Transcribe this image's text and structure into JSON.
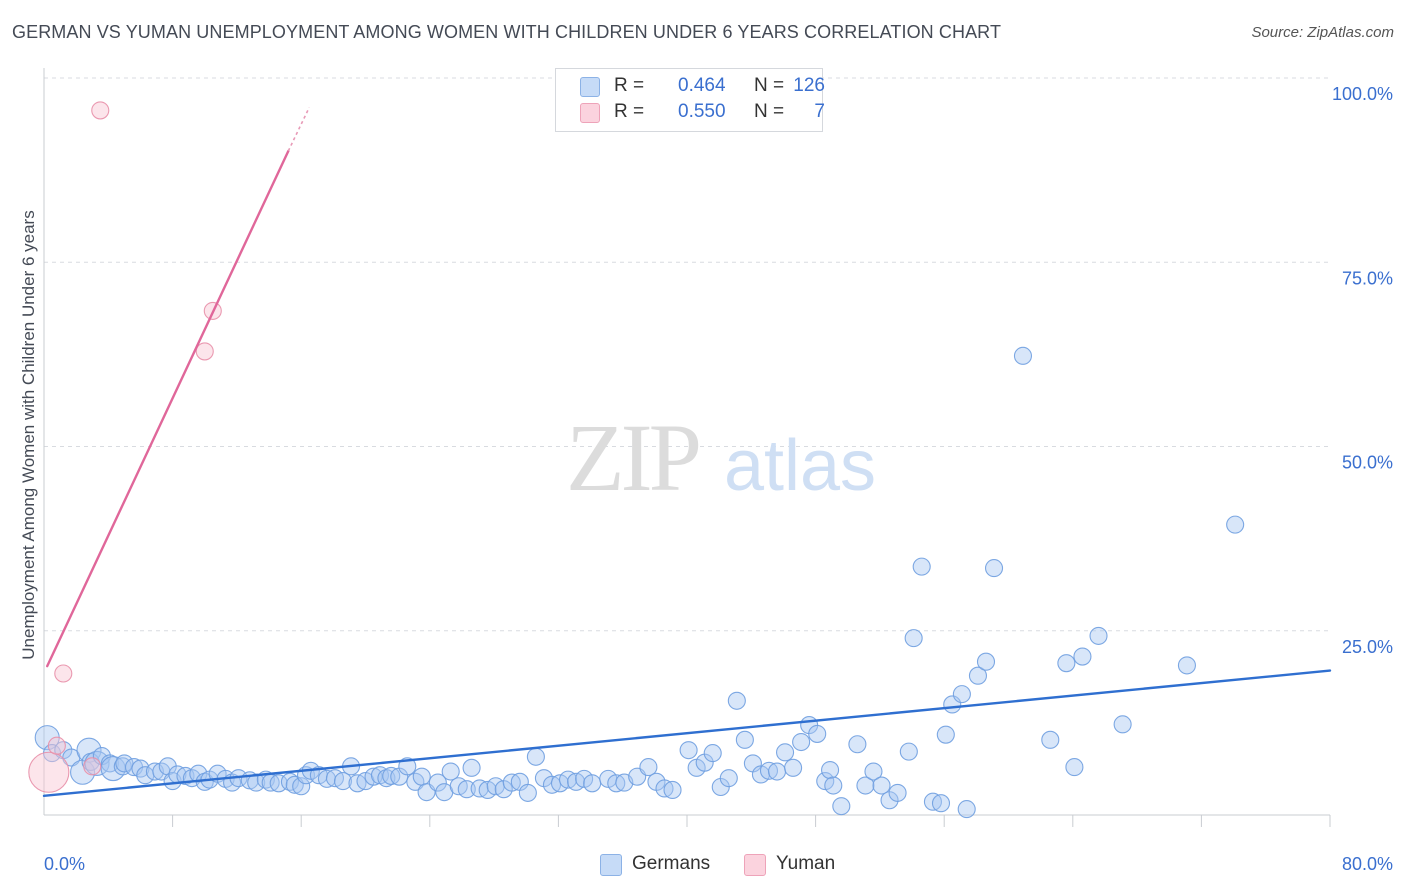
{
  "title": "GERMAN VS YUMAN UNEMPLOYMENT AMONG WOMEN WITH CHILDREN UNDER 6 YEARS CORRELATION CHART",
  "source": "Source: ZipAtlas.com",
  "watermark": {
    "zip": "ZIP",
    "atlas": "atlas"
  },
  "legend": {
    "r_label": "R =",
    "n_label": "N =",
    "entries": [
      {
        "name": "Germans",
        "r": "0.464",
        "n": "126",
        "color": "#a9c8f2",
        "stroke": "#6f9fe0"
      },
      {
        "name": "Yuman",
        "r": "0.550",
        "n": "7",
        "color": "#f8c6d3",
        "stroke": "#e88fa9"
      }
    ]
  },
  "chart_data": {
    "type": "scatter",
    "title": "GERMAN VS YUMAN UNEMPLOYMENT AMONG WOMEN WITH CHILDREN UNDER 6 YEARS CORRELATION CHART",
    "xlabel": "",
    "ylabel": "Unemployment Among Women with Children Under 6 years",
    "xlim": [
      0,
      80
    ],
    "ylim": [
      0,
      100
    ],
    "x_tick_labels": [
      "0.0%",
      "80.0%"
    ],
    "y_tick_labels": [
      {
        "value": 100,
        "label": "100.0%"
      },
      {
        "value": 75,
        "label": "75.0%"
      },
      {
        "value": 50,
        "label": "50.0%"
      },
      {
        "value": 25,
        "label": "25.0%"
      }
    ],
    "grid": true,
    "series": [
      {
        "name": "Germans",
        "color": "#6f9fe0",
        "fill": "#a9c8f2",
        "trendline": {
          "x": [
            0,
            80
          ],
          "y": [
            2.6,
            19.6
          ]
        },
        "points": [
          [
            0.2,
            10.5,
            2
          ],
          [
            0.5,
            8.4,
            1
          ],
          [
            1.2,
            8.8,
            1
          ],
          [
            1.7,
            7.8,
            1
          ],
          [
            2.4,
            5.8,
            2
          ],
          [
            2.8,
            8.8,
            2
          ],
          [
            2.9,
            7.2,
            1
          ],
          [
            3.3,
            7.0,
            2
          ],
          [
            3.6,
            8.0,
            1
          ],
          [
            4.1,
            7.0,
            1
          ],
          [
            4.3,
            6.3,
            2
          ],
          [
            4.9,
            6.6,
            1
          ],
          [
            5.0,
            7.0,
            1
          ],
          [
            5.6,
            6.5,
            1
          ],
          [
            6.0,
            6.3,
            1
          ],
          [
            6.3,
            5.4,
            1
          ],
          [
            6.9,
            5.9,
            1
          ],
          [
            7.3,
            5.9,
            1
          ],
          [
            7.7,
            6.6,
            1
          ],
          [
            8.0,
            4.6,
            1
          ],
          [
            8.3,
            5.5,
            1
          ],
          [
            8.8,
            5.3,
            1
          ],
          [
            9.2,
            5.0,
            1
          ],
          [
            9.6,
            5.6,
            1
          ],
          [
            10.0,
            4.5,
            1
          ],
          [
            10.3,
            4.8,
            1
          ],
          [
            10.8,
            5.6,
            1
          ],
          [
            11.3,
            4.9,
            1
          ],
          [
            11.7,
            4.4,
            1
          ],
          [
            12.1,
            5.0,
            1
          ],
          [
            12.8,
            4.7,
            1
          ],
          [
            13.2,
            4.4,
            1
          ],
          [
            13.8,
            4.8,
            1
          ],
          [
            14.1,
            4.4,
            1
          ],
          [
            14.6,
            4.3,
            1
          ],
          [
            15.3,
            4.5,
            1
          ],
          [
            15.6,
            4.1,
            1
          ],
          [
            16.0,
            3.9,
            1
          ],
          [
            16.3,
            5.4,
            1
          ],
          [
            16.6,
            6.0,
            1
          ],
          [
            17.1,
            5.4,
            1
          ],
          [
            17.6,
            4.9,
            1
          ],
          [
            18.1,
            5.0,
            1
          ],
          [
            18.6,
            4.6,
            1
          ],
          [
            19.1,
            6.6,
            1
          ],
          [
            19.5,
            4.3,
            1
          ],
          [
            20.0,
            4.6,
            1
          ],
          [
            20.5,
            5.2,
            1
          ],
          [
            20.9,
            5.4,
            1
          ],
          [
            21.3,
            5.0,
            1
          ],
          [
            21.6,
            5.3,
            1
          ],
          [
            22.1,
            5.2,
            1
          ],
          [
            22.6,
            6.6,
            1
          ],
          [
            23.1,
            4.5,
            1
          ],
          [
            23.5,
            5.2,
            1
          ],
          [
            23.8,
            3.1,
            1
          ],
          [
            24.5,
            4.4,
            1
          ],
          [
            24.9,
            3.1,
            1
          ],
          [
            25.3,
            5.9,
            1
          ],
          [
            25.8,
            3.9,
            1
          ],
          [
            26.3,
            3.5,
            1
          ],
          [
            26.6,
            6.4,
            1
          ],
          [
            27.1,
            3.6,
            1
          ],
          [
            27.6,
            3.4,
            1
          ],
          [
            28.1,
            3.9,
            1
          ],
          [
            28.6,
            3.5,
            1
          ],
          [
            29.1,
            4.4,
            1
          ],
          [
            29.6,
            4.5,
            1
          ],
          [
            30.1,
            3.0,
            1
          ],
          [
            30.6,
            7.9,
            1
          ],
          [
            31.1,
            5.0,
            1
          ],
          [
            31.6,
            4.1,
            1
          ],
          [
            32.1,
            4.3,
            1
          ],
          [
            32.6,
            4.8,
            1
          ],
          [
            33.1,
            4.5,
            1
          ],
          [
            33.6,
            4.9,
            1
          ],
          [
            34.1,
            4.3,
            1
          ],
          [
            35.1,
            4.9,
            1
          ],
          [
            35.6,
            4.3,
            1
          ],
          [
            36.1,
            4.4,
            1
          ],
          [
            36.9,
            5.2,
            1
          ],
          [
            37.6,
            6.5,
            1
          ],
          [
            38.1,
            4.5,
            1
          ],
          [
            38.6,
            3.6,
            1
          ],
          [
            39.1,
            3.4,
            1
          ],
          [
            40.1,
            8.8,
            1
          ],
          [
            40.6,
            6.4,
            1
          ],
          [
            41.1,
            7.1,
            1
          ],
          [
            41.6,
            8.4,
            1
          ],
          [
            42.1,
            3.8,
            1
          ],
          [
            42.6,
            5.0,
            1
          ],
          [
            43.1,
            15.5,
            1
          ],
          [
            43.6,
            10.2,
            1
          ],
          [
            44.1,
            7.0,
            1
          ],
          [
            44.6,
            5.5,
            1
          ],
          [
            45.1,
            6.0,
            1
          ],
          [
            45.6,
            5.9,
            1
          ],
          [
            46.1,
            8.5,
            1
          ],
          [
            46.6,
            6.4,
            1
          ],
          [
            47.1,
            9.9,
            1
          ],
          [
            47.6,
            12.2,
            1
          ],
          [
            48.1,
            11.0,
            1
          ],
          [
            48.6,
            4.6,
            1
          ],
          [
            48.9,
            6.1,
            1
          ],
          [
            49.1,
            4.0,
            1
          ],
          [
            49.6,
            1.2,
            1
          ],
          [
            50.6,
            9.6,
            1
          ],
          [
            51.1,
            4.0,
            1
          ],
          [
            51.6,
            5.9,
            1
          ],
          [
            52.1,
            4.0,
            1
          ],
          [
            52.6,
            2.0,
            1
          ],
          [
            53.1,
            3.0,
            1
          ],
          [
            53.8,
            8.6,
            1
          ],
          [
            54.1,
            24.0,
            1
          ],
          [
            54.6,
            33.7,
            1
          ],
          [
            55.3,
            1.8,
            1
          ],
          [
            55.8,
            1.6,
            1
          ],
          [
            56.1,
            10.9,
            1
          ],
          [
            56.5,
            15.0,
            1
          ],
          [
            57.1,
            16.4,
            1
          ],
          [
            57.4,
            0.8,
            1
          ],
          [
            58.1,
            18.9,
            1
          ],
          [
            58.6,
            20.8,
            1
          ],
          [
            59.1,
            33.5,
            1
          ],
          [
            60.9,
            62.3,
            1
          ],
          [
            62.6,
            10.2,
            1
          ],
          [
            63.6,
            20.6,
            1
          ],
          [
            64.1,
            6.5,
            1
          ],
          [
            64.6,
            21.5,
            1
          ],
          [
            65.6,
            24.3,
            1
          ],
          [
            67.1,
            12.3,
            1
          ],
          [
            71.1,
            20.3,
            1
          ],
          [
            74.1,
            39.4,
            1
          ]
        ]
      },
      {
        "name": "Yuman",
        "color": "#e88fa9",
        "fill": "#f8c6d3",
        "trendline": {
          "x": [
            0.2,
            15.2
          ],
          "y": [
            20.2,
            90.1
          ]
        },
        "trendline_dashed": {
          "x": [
            15.2,
            16.5
          ],
          "y": [
            90.1,
            96.0
          ]
        },
        "points": [
          [
            0.3,
            5.8,
            3
          ],
          [
            0.8,
            9.4,
            1
          ],
          [
            1.2,
            19.2,
            1
          ],
          [
            3.0,
            6.6,
            1
          ],
          [
            3.5,
            95.6,
            1
          ],
          [
            10.0,
            62.9,
            1
          ],
          [
            10.5,
            68.4,
            1
          ]
        ]
      }
    ]
  },
  "bottom_legend": [
    "Germans",
    "Yuman"
  ]
}
